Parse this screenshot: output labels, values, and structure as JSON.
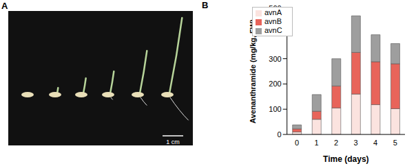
{
  "panel_labels": [
    "A",
    "B"
  ],
  "photo": {
    "scale_bar": "1 cm"
  },
  "chart_data": {
    "type": "bar",
    "stacked": true,
    "x_label": "Time (days)",
    "y_label": "Avenanthramide (mg/kg, FW)",
    "categories": [
      0,
      1,
      2,
      3,
      4,
      5
    ],
    "series": [
      {
        "name": "avnA",
        "color": "#fbe3df",
        "values": [
          10,
          60,
          105,
          160,
          118,
          102
        ]
      },
      {
        "name": "avnB",
        "color": "#e8645a",
        "values": [
          12,
          32,
          87,
          165,
          170,
          178
        ]
      },
      {
        "name": "avnC",
        "color": "#9e9e9e",
        "values": [
          16,
          66,
          108,
          145,
          107,
          80
        ]
      }
    ],
    "ylim": [
      0,
      500
    ],
    "yticks": [
      0,
      100,
      200,
      300,
      400,
      500
    ],
    "legend": "upper left"
  }
}
